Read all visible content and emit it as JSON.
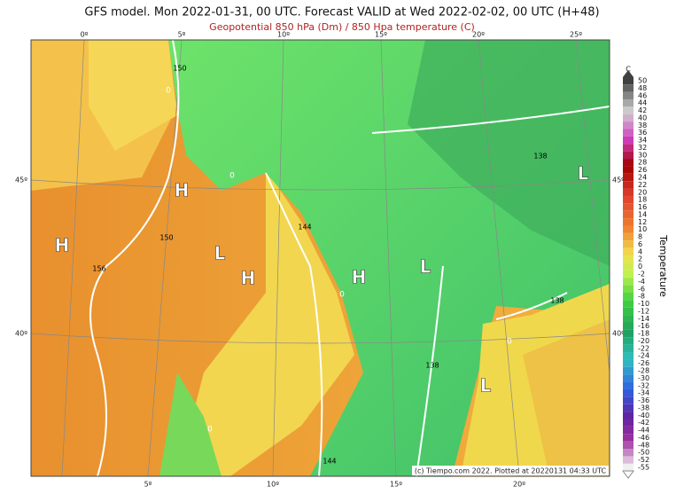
{
  "header": {
    "title": "GFS model. Mon 2022-01-31, 00 UTC. Forecast VALID at Wed 2022-02-02, 00 UTC (H+48)",
    "subtitle": "Geopotential 850 hPa (Dm) / 850 Hpa temperature (C)"
  },
  "axes": {
    "top": [
      "0º",
      "5º",
      "10º",
      "15º",
      "20º",
      "25º"
    ],
    "bottom": [
      "5º",
      "10º",
      "15º",
      "20º"
    ],
    "left": [
      "45º",
      "40º"
    ],
    "right": [
      "45º",
      "40º"
    ]
  },
  "map_labels": [
    "150",
    "0",
    "0",
    "H",
    "138",
    "L",
    "144",
    "150",
    "H",
    "L",
    "H",
    "H",
    "L",
    "156",
    "0",
    "138",
    "0",
    "138",
    "L",
    "0",
    "144"
  ],
  "credit": "(c) Tiempo.com 2022. Plotted at 20220131 04:33 UTC",
  "legend": {
    "unit": "C",
    "title": "Temperature",
    "labels": [
      50,
      48,
      46,
      44,
      42,
      40,
      38,
      36,
      34,
      32,
      30,
      28,
      26,
      24,
      22,
      20,
      18,
      16,
      14,
      12,
      10,
      8,
      6,
      4,
      2,
      0,
      -2,
      -4,
      -6,
      -8,
      -10,
      -12,
      -14,
      -16,
      -18,
      -20,
      -22,
      -24,
      -26,
      -28,
      -30,
      -32,
      -34,
      -36,
      -38,
      -40,
      -42,
      -44,
      -46,
      -48,
      -50,
      -52,
      -55
    ]
  }
}
